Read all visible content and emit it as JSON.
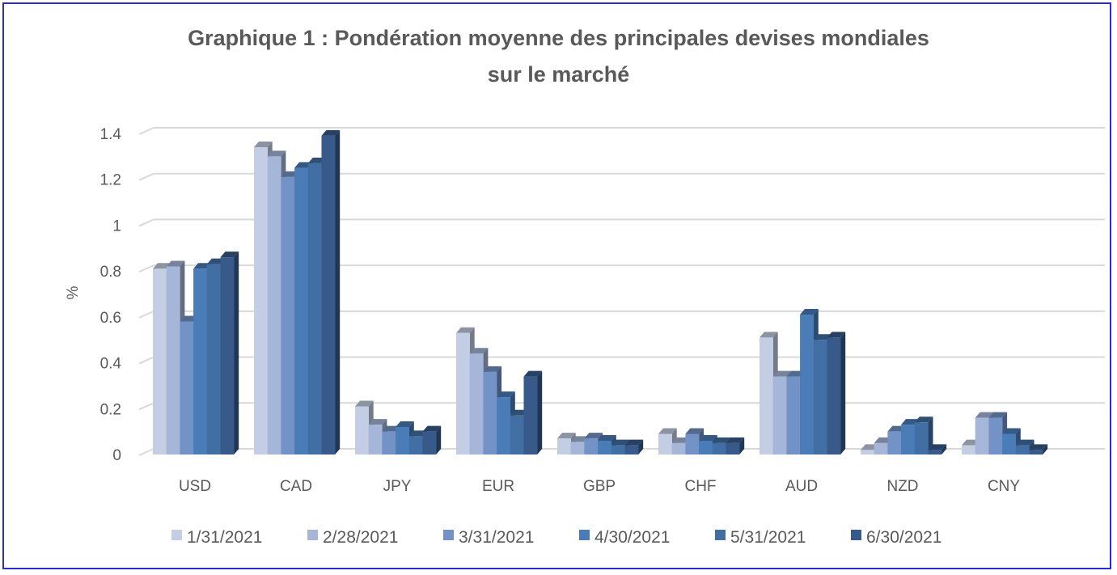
{
  "chart_data": {
    "type": "bar",
    "title_line1": "Graphique 1 : Pondération moyenne des principales devises mondiales",
    "title_line2": "sur le marché",
    "xlabel": "",
    "ylabel": "%",
    "ylim": [
      0,
      1.4
    ],
    "yticks": [
      "0",
      "0.2",
      "0.4",
      "0.6",
      "0.8",
      "1",
      "1.2",
      "1.4"
    ],
    "grid": true,
    "legend_position": "bottom",
    "categories": [
      "USD",
      "CAD",
      "JPY",
      "EUR",
      "GBP",
      "CHF",
      "AUD",
      "NZD",
      "CNY"
    ],
    "series": [
      {
        "name": "1/31/2021",
        "color": "#c3cde3",
        "values": [
          0.81,
          1.34,
          0.21,
          0.53,
          0.07,
          0.09,
          0.51,
          0.02,
          0.04
        ]
      },
      {
        "name": "2/28/2021",
        "color": "#a5b6d8",
        "values": [
          0.82,
          1.3,
          0.13,
          0.44,
          0.055,
          0.05,
          0.34,
          0.05,
          0.16
        ]
      },
      {
        "name": "3/31/2021",
        "color": "#7393c6",
        "values": [
          0.58,
          1.21,
          0.1,
          0.36,
          0.07,
          0.09,
          0.34,
          0.1,
          0.16
        ]
      },
      {
        "name": "4/30/2021",
        "color": "#4a7cb8",
        "values": [
          0.81,
          1.25,
          0.12,
          0.25,
          0.06,
          0.06,
          0.61,
          0.13,
          0.09
        ]
      },
      {
        "name": "5/31/2021",
        "color": "#416ea3",
        "values": [
          0.83,
          1.27,
          0.08,
          0.17,
          0.04,
          0.05,
          0.5,
          0.14,
          0.04
        ]
      },
      {
        "name": "6/30/2021",
        "color": "#375a8a",
        "values": [
          0.86,
          1.39,
          0.1,
          0.34,
          0.04,
          0.05,
          0.51,
          0.02,
          0.02
        ]
      }
    ]
  }
}
